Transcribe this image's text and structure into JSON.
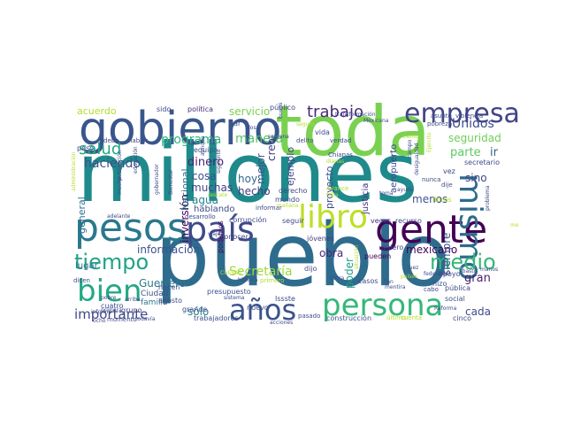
{
  "words": [
    {
      "text": "millones",
      "color": "#1f8a8c"
    },
    {
      "text": "pueblo",
      "color": "#2e6c8e"
    },
    {
      "text": "toda",
      "color": "#7ad151"
    },
    {
      "text": "gobierno",
      "color": "#39568c"
    },
    {
      "text": "pesos",
      "color": "#2a788e"
    },
    {
      "text": "país",
      "color": "#3e4a89"
    },
    {
      "text": "gente",
      "color": "#440154"
    },
    {
      "text": "libro",
      "color": "#bddf26"
    },
    {
      "text": "persona",
      "color": "#35b779"
    },
    {
      "text": "años",
      "color": "#3b528b"
    },
    {
      "text": "bien",
      "color": "#22a884"
    },
    {
      "text": "mismo",
      "color": "#2f6b8e"
    },
    {
      "text": "empresa",
      "color": "#414487"
    },
    {
      "text": "tiempo",
      "color": "#20a386"
    },
    {
      "text": "medio",
      "color": "#35b779"
    },
    {
      "text": "salud",
      "color": "#22a884"
    },
    {
      "text": "trabajo",
      "color": "#482878"
    },
    {
      "text": "Secretaría",
      "color": "#9fda3a"
    },
    {
      "text": "importante",
      "color": "#404688"
    },
    {
      "text": "haciendo",
      "color": "#3b528b"
    },
    {
      "text": "programa",
      "color": "#2fb47c"
    },
    {
      "text": "manera",
      "color": "#52c569"
    },
    {
      "text": "servicio",
      "color": "#7ad151"
    },
    {
      "text": "seguridad",
      "color": "#6ece58"
    },
    {
      "text": "Unidos",
      "color": "#3e4989"
    },
    {
      "text": "Estados",
      "color": "#1fa187"
    },
    {
      "text": "parte",
      "color": "#5ec962"
    },
    {
      "text": "ir",
      "color": "#31688e"
    },
    {
      "text": "dinero",
      "color": "#482475"
    },
    {
      "text": "cosa",
      "color": "#3b528b"
    },
    {
      "text": "agua",
      "color": "#26828e"
    },
    {
      "text": "muchas",
      "color": "#414487"
    },
    {
      "text": "hoy",
      "color": "#31688e"
    },
    {
      "text": "hecho",
      "color": "#443983"
    },
    {
      "text": "información",
      "color": "#3b528b"
    },
    {
      "text": "Guerrero",
      "color": "#2a788e"
    },
    {
      "text": "obra",
      "color": "#482878"
    },
    {
      "text": "mexicano",
      "color": "#440154"
    },
    {
      "text": "sino",
      "color": "#404688"
    },
    {
      "text": "menos",
      "color": "#39568c"
    },
    {
      "text": "gran",
      "color": "#481f70"
    },
    {
      "text": "cada",
      "color": "#3e4a89"
    },
    {
      "text": "siempre",
      "color": "#3b528b"
    },
    {
      "text": "acuerdo",
      "color": "#b5de2b"
    },
    {
      "text": "sólo",
      "color": "#26828e"
    },
    {
      "text": "inversión",
      "color": "#440154"
    },
    {
      "text": "hablando",
      "color": "#3e4a89"
    },
    {
      "text": "Nacional",
      "color": "#2c728e"
    },
    {
      "text": "general",
      "color": "#2c728e"
    },
    {
      "text": "mejor",
      "color": "#3b528b"
    },
    {
      "text": "creo",
      "color": "#433d84"
    },
    {
      "text": "proyecto",
      "color": "#3e4a89"
    },
    {
      "text": "ejemplo",
      "color": "#404688"
    },
    {
      "text": "poder",
      "color": "#1f9e89"
    },
    {
      "text": "aeropuerto",
      "color": "#3e4989"
    },
    {
      "text": "justicia",
      "color": "#46327e"
    },
    {
      "text": "lugar",
      "color": "#2e6d8e"
    },
    {
      "text": "Ciudad",
      "color": "#3b528b"
    },
    {
      "text": "familia",
      "color": "#2c728e"
    },
    {
      "text": "grupo",
      "color": "#404688"
    },
    {
      "text": "política",
      "color": "#482878"
    },
    {
      "text": "sido",
      "color": "#3e4a89"
    },
    {
      "text": "público",
      "color": "#3e4a89"
    },
    {
      "text": "equipo",
      "color": "#3b528b"
    },
    {
      "text": "vida",
      "color": "#3e4a89"
    },
    {
      "text": "dar",
      "color": "#3b528b"
    },
    {
      "text": "conocer",
      "color": "#3e4a89"
    },
    {
      "text": "podemos",
      "color": "#440154"
    },
    {
      "text": "presupuesto",
      "color": "#3b528b"
    },
    {
      "text": "corrupción",
      "color": "#3e4a89"
    },
    {
      "text": "desarrollo",
      "color": "#3e4a89"
    },
    {
      "text": "seguir",
      "color": "#3e4a89"
    },
    {
      "text": "veces",
      "color": "#46327e"
    },
    {
      "text": "recurso",
      "color": "#3e4a89"
    },
    {
      "text": "jóvenes",
      "color": "#433d84"
    },
    {
      "text": "pueden",
      "color": "#440154"
    },
    {
      "text": "quiero",
      "color": "#3e4a89"
    },
    {
      "text": "dijo",
      "color": "#3e4a89"
    },
    {
      "text": "hizo",
      "color": "#3b528b"
    },
    {
      "text": "apoyo",
      "color": "#3e4a89"
    },
    {
      "text": "pública",
      "color": "#3e4a89"
    },
    {
      "text": "social",
      "color": "#3b528b"
    },
    {
      "text": "cinco",
      "color": "#3e4a89"
    },
    {
      "text": "nuevo",
      "color": "#3b528b"
    },
    {
      "text": "Issste",
      "color": "#3e4a89"
    },
    {
      "text": "construcción",
      "color": "#3b528b"
    },
    {
      "text": "trabajadores",
      "color": "#3b528b"
    },
    {
      "text": "agosto",
      "color": "#3e4a89"
    },
    {
      "text": "hacen",
      "color": "#3b528b"
    },
    {
      "text": "grande",
      "color": "#3e4a89"
    },
    {
      "text": "momento",
      "color": "#3e4a89"
    },
    {
      "text": "cuatro",
      "color": "#3e4a89"
    },
    {
      "text": "primero",
      "color": "#b5de2b"
    },
    {
      "text": "cuenta",
      "color": "#b5de2b"
    },
    {
      "text": "último",
      "color": "#b5de2b"
    },
    {
      "text": "pasado",
      "color": "#3e4a89"
    },
    {
      "text": "casos",
      "color": "#3e4a89"
    },
    {
      "text": "libros",
      "color": "#b5de2b"
    },
    {
      "text": "vez",
      "color": "#3e4a89"
    },
    {
      "text": "secretario",
      "color": "#3e4a89"
    },
    {
      "text": "dije",
      "color": "#3e4a89"
    },
    {
      "text": "nunca",
      "color": "#3e4a89"
    },
    {
      "text": "peso",
      "color": "#3e4a89"
    },
    {
      "text": "debe",
      "color": "#3e4a89"
    },
    {
      "text": "hablar",
      "color": "#3e4a89"
    },
    {
      "text": "aunque",
      "color": "#3e4a89"
    },
    {
      "text": "siguiente",
      "color": "#3e4a89"
    },
    {
      "text": "informar",
      "color": "#3e4a89"
    },
    {
      "text": "derecho",
      "color": "#3e4a89"
    },
    {
      "text": "mundo",
      "color": "#3e4a89"
    },
    {
      "text": "delito",
      "color": "#3e4a89"
    },
    {
      "text": "avance",
      "color": "#b5de2b"
    },
    {
      "text": "pobreza",
      "color": "#3e4a89"
    },
    {
      "text": "asunto",
      "color": "#3e4a89"
    },
    {
      "text": "violencia",
      "color": "#3e4a89"
    },
    {
      "text": "transformación",
      "color": "#3e4a89"
    },
    {
      "text": "Mexicana",
      "color": "#3e4a89"
    },
    {
      "text": "Chiapas",
      "color": "#3e4a89"
    },
    {
      "text": "verdad",
      "color": "#3e4a89"
    },
    {
      "text": "Ejército",
      "color": "#b5de2b"
    },
    {
      "text": "dicen",
      "color": "#3e4a89"
    },
    {
      "text": "adelante",
      "color": "#3e4a89"
    },
    {
      "text": "arriba",
      "color": "#3e4a89"
    },
    {
      "text": "pobre",
      "color": "#3e4a89"
    },
    {
      "text": "ocho",
      "color": "#3e4a89"
    },
    {
      "text": "todavía",
      "color": "#3e4a89"
    },
    {
      "text": "historia",
      "color": "#3e4a89"
    },
    {
      "text": "tierra",
      "color": "#3e4a89"
    },
    {
      "text": "tan",
      "color": "#3e4a89"
    },
    {
      "text": "mentira",
      "color": "#3e4a89"
    },
    {
      "text": "federales",
      "color": "#3e4a89"
    },
    {
      "text": "cabo",
      "color": "#3e4a89"
    },
    {
      "text": "juez",
      "color": "#3e4a89"
    },
    {
      "text": "países",
      "color": "#b5de2b"
    },
    {
      "text": "situación",
      "color": "#b5de2b"
    },
    {
      "text": "problema",
      "color": "#3e4a89"
    },
    {
      "text": "memoria",
      "color": "#b5de2b"
    },
    {
      "text": "abasto",
      "color": "#3e4a89"
    },
    {
      "text": "manos",
      "color": "#3e4a89"
    },
    {
      "text": "CUEVAS",
      "color": "#b5de2b"
    },
    {
      "text": "diarias",
      "color": "#b5de2b"
    },
    {
      "text": "ciento",
      "color": "#b5de2b"
    },
    {
      "text": "grupo",
      "color": "#3e4a89"
    },
    {
      "text": "falta",
      "color": "#b5de2b"
    },
    {
      "text": "mañana",
      "color": "#b5de2b"
    },
    {
      "text": "educación",
      "color": "#3e4a89"
    },
    {
      "text": "viaje",
      "color": "#3e4a89"
    },
    {
      "text": "Bienestar",
      "color": "#3e4a89"
    },
    {
      "text": "informe",
      "color": "#3e4a89"
    },
    {
      "text": "sistema",
      "color": "#3e4a89"
    },
    {
      "text": "Reforma",
      "color": "#3e4a89"
    },
    {
      "text": "mucha",
      "color": "#3e4a89"
    },
    {
      "text": "buena",
      "color": "#3e4a89"
    },
    {
      "text": "semana",
      "color": "#3e4a89"
    },
    {
      "text": "dos",
      "color": "#3e4a89"
    },
    {
      "text": "primera",
      "color": "#3e4a89"
    },
    {
      "text": "toma",
      "color": "#3e4a89"
    },
    {
      "text": "ayuda",
      "color": "#3e4a89"
    },
    {
      "text": "campo",
      "color": "#3e4a89"
    },
    {
      "text": "desigualdad",
      "color": "#3e4a89"
    },
    {
      "text": "administración",
      "color": "#b5de2b"
    },
    {
      "text": "publicación",
      "color": "#3e4a89"
    },
    {
      "text": "gobernador",
      "color": "#3e4a89"
    },
    {
      "text": "rescate",
      "color": "#b5de2b"
    },
    {
      "text": "acciones",
      "color": "#3e4a89"
    },
    {
      "text": "seguro",
      "color": "#b5de2b"
    }
  ]
}
